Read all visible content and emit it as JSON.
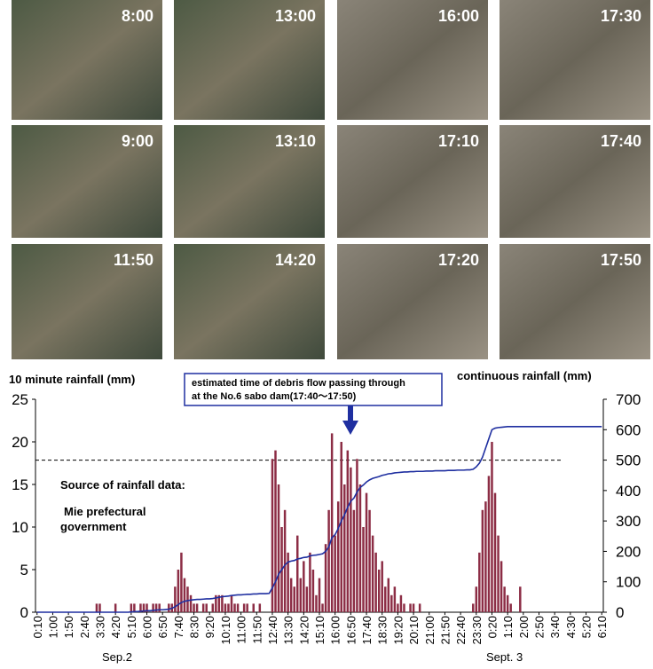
{
  "photos": [
    {
      "time": "8:00"
    },
    {
      "time": "9:00"
    },
    {
      "time": "11:50"
    },
    {
      "time": "13:00"
    },
    {
      "time": "13:10"
    },
    {
      "time": "14:20"
    },
    {
      "time": "16:00"
    },
    {
      "time": "17:10"
    },
    {
      "time": "17:20"
    },
    {
      "time": "17:30"
    },
    {
      "time": "17:40"
    },
    {
      "time": "17:50"
    }
  ],
  "chart_data": {
    "type": "bar",
    "ylabel": "10 minute  rainfall (mm)",
    "y2label": "continuous rainfall (mm)",
    "annotation": [
      "estimated time of debris flow passing through",
      "at the No.6 sabo dam(17:40～17:50)"
    ],
    "source": [
      "Source of rainfall data:",
      "Mie prefectural",
      "government"
    ],
    "date_labels": [
      "Sep.2",
      "Sept. 3"
    ],
    "categories": [
      "0:10",
      null,
      null,
      null,
      null,
      "1:00",
      null,
      null,
      null,
      null,
      "1:50",
      null,
      null,
      null,
      null,
      "2:40",
      null,
      null,
      null,
      null,
      "3:30",
      null,
      null,
      null,
      null,
      "4:20",
      null,
      null,
      null,
      null,
      "5:10",
      null,
      null,
      null,
      null,
      "6:00",
      null,
      null,
      null,
      null,
      "6:50",
      null,
      null,
      null,
      null,
      "7:40",
      null,
      null,
      null,
      null,
      "8:30",
      null,
      null,
      null,
      null,
      "9:20",
      null,
      null,
      null,
      null,
      "10:10",
      null,
      null,
      null,
      null,
      "11:00",
      null,
      null,
      null,
      null,
      "11:50",
      null,
      null,
      null,
      null,
      "12:40",
      null,
      null,
      null,
      null,
      "13:30",
      null,
      null,
      null,
      null,
      "14:20",
      null,
      null,
      null,
      null,
      "15:10",
      null,
      null,
      null,
      null,
      "16:00",
      null,
      null,
      null,
      null,
      "16:50",
      null,
      null,
      null,
      null,
      "17:40",
      null,
      null,
      null,
      null,
      "18:30",
      null,
      null,
      null,
      null,
      "19:20",
      null,
      null,
      null,
      null,
      "20:10",
      null,
      null,
      null,
      null,
      "21:00",
      null,
      null,
      null,
      null,
      "21:50",
      null,
      null,
      null,
      null,
      "22:40",
      null,
      null,
      null,
      null,
      "23:30",
      null,
      null,
      null,
      null,
      "0:20",
      null,
      null,
      null,
      null,
      "1:10",
      null,
      null,
      null,
      null,
      "2:00",
      null,
      null,
      null,
      null,
      "2:50",
      null,
      null,
      null,
      null,
      "3:40",
      null,
      null,
      null,
      null,
      "4:30",
      null,
      null,
      null,
      null,
      "5:20",
      null,
      null,
      null,
      null,
      "6:10"
    ],
    "series": [
      {
        "color": "#8c2d45",
        "values": [
          0,
          0,
          0,
          0,
          0,
          0,
          0,
          0,
          0,
          0,
          0,
          0,
          0,
          0,
          0,
          0,
          0,
          0,
          0,
          1,
          1,
          0,
          0,
          0,
          0,
          1,
          0,
          0,
          0,
          0,
          1,
          1,
          0,
          1,
          1,
          1,
          0,
          1,
          1,
          1,
          0,
          0,
          1,
          1,
          3,
          5,
          7,
          4,
          3,
          2,
          1,
          1,
          0,
          1,
          1,
          0,
          1,
          2,
          2,
          2,
          1,
          1,
          2,
          1,
          1,
          0,
          1,
          1,
          0,
          1,
          0,
          1,
          0,
          0,
          0,
          18,
          19,
          15,
          10,
          12,
          7,
          4,
          3,
          9,
          4,
          6,
          3,
          7,
          5,
          2,
          4,
          1,
          8,
          12,
          21,
          9,
          13,
          20,
          15,
          19,
          17,
          12,
          18,
          15,
          10,
          14,
          12,
          9,
          7,
          5,
          6,
          3,
          4,
          2,
          3,
          1,
          2,
          1,
          0,
          1,
          1,
          0,
          1,
          0,
          0,
          0,
          0,
          0,
          0,
          0,
          0,
          0,
          0,
          0,
          0,
          0,
          0,
          0,
          0,
          1,
          3,
          7,
          12,
          13,
          16,
          20,
          14,
          9,
          6,
          3,
          2,
          1,
          0,
          0,
          3,
          0,
          0,
          0,
          0,
          0,
          0,
          0,
          0,
          0,
          0,
          0,
          0,
          0,
          0,
          0,
          0,
          0,
          0,
          0,
          0,
          0,
          0,
          0,
          0,
          0,
          0
        ]
      },
      {
        "color": "#1f2fa0",
        "axis": "y2",
        "values": [
          0,
          0,
          0,
          0,
          0,
          0,
          0,
          0,
          0,
          0,
          0,
          0,
          0,
          0,
          0,
          0,
          0,
          0,
          0,
          0,
          0,
          0,
          0,
          0,
          0,
          0,
          0,
          0,
          0,
          0,
          1,
          2,
          2,
          3,
          4,
          5,
          5,
          6,
          7,
          8,
          8,
          9,
          10,
          13,
          18,
          25,
          32,
          36,
          38,
          40,
          41,
          42,
          42,
          43,
          44,
          44,
          45,
          47,
          49,
          51,
          52,
          53,
          55,
          56,
          57,
          57,
          58,
          59,
          59,
          60,
          60,
          61,
          61,
          61,
          62,
          80,
          100,
          125,
          140,
          155,
          165,
          168,
          170,
          175,
          177,
          180,
          181,
          185,
          187,
          188,
          190,
          192,
          200,
          215,
          245,
          255,
          275,
          300,
          320,
          345,
          365,
          375,
          395,
          410,
          418,
          428,
          435,
          440,
          443,
          446,
          450,
          452,
          455,
          456,
          458,
          459,
          460,
          461,
          461,
          462,
          462,
          463,
          463,
          463,
          464,
          464,
          464,
          465,
          465,
          465,
          465,
          466,
          466,
          466,
          467,
          467,
          467,
          468,
          468,
          470,
          478,
          490,
          510,
          540,
          570,
          600,
          605,
          607,
          608,
          609,
          610,
          610,
          610,
          610,
          610,
          610,
          610,
          610,
          610,
          610,
          610,
          610,
          610,
          610,
          610,
          610,
          610,
          610,
          610,
          610,
          610,
          610,
          610,
          610,
          610,
          610,
          610,
          610,
          610,
          610,
          610
        ]
      }
    ],
    "reference_line": {
      "value": 500,
      "axis": "y2"
    },
    "ylim": [
      0,
      25
    ],
    "yticks": [
      0,
      5,
      10,
      15,
      20,
      25
    ],
    "y2lim": [
      0,
      700
    ],
    "y2ticks": [
      0,
      100,
      200,
      300,
      400,
      500,
      600,
      700
    ]
  }
}
